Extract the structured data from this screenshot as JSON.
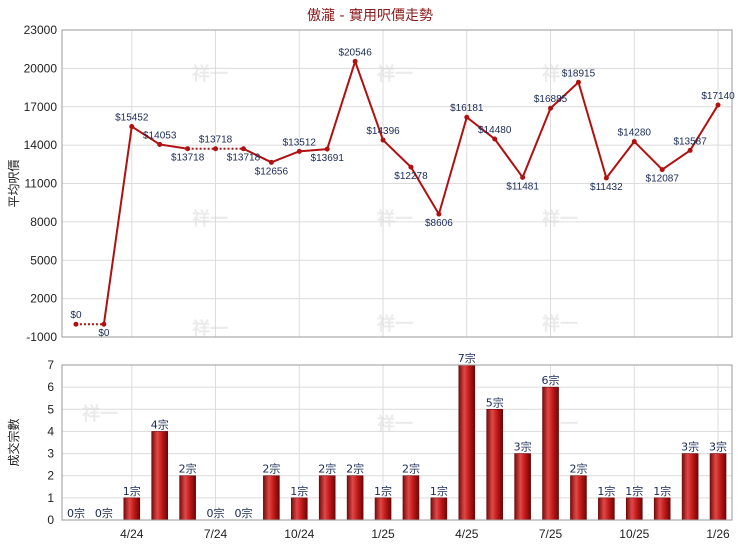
{
  "chart_data": [
    {
      "type": "line",
      "title": "傲瀧 - 實用呎價走勢",
      "ylabel": "平均呎價",
      "ylim": [
        -1000,
        23000
      ],
      "yticks": [
        -1000,
        2000,
        5000,
        8000,
        11000,
        14000,
        17000,
        20000,
        23000
      ],
      "xticks": [
        {
          "label": "4/24",
          "index": 2
        },
        {
          "label": "7/24",
          "index": 5
        },
        {
          "label": "10/24",
          "index": 8
        },
        {
          "label": "1/25",
          "index": 11
        },
        {
          "label": "4/25",
          "index": 14
        },
        {
          "label": "7/25",
          "index": 17
        },
        {
          "label": "10/25",
          "index": 20
        },
        {
          "label": "1/26",
          "index": 23
        }
      ],
      "line_color": "#b01010",
      "points": [
        {
          "value": 0,
          "label": "$0",
          "dashed_to_next": true
        },
        {
          "value": 0,
          "label": "$0"
        },
        {
          "value": 15452,
          "label": "$15452"
        },
        {
          "value": 14053,
          "label": "$14053"
        },
        {
          "value": 13718,
          "label": "$13718",
          "dashed_to_next": true
        },
        {
          "value": 13718,
          "label": "$13718",
          "dashed_to_next": true
        },
        {
          "value": 13718,
          "label": "$13718"
        },
        {
          "value": 12656,
          "label": "$12656"
        },
        {
          "value": 13512,
          "label": "$13512"
        },
        {
          "value": 13691,
          "label": "$13691"
        },
        {
          "value": 20546,
          "label": "$20546"
        },
        {
          "value": 14396,
          "label": "$14396"
        },
        {
          "value": 12278,
          "label": "$12278"
        },
        {
          "value": 8606,
          "label": "$8606"
        },
        {
          "value": 16181,
          "label": "$16181"
        },
        {
          "value": 14480,
          "label": "$14480"
        },
        {
          "value": 11481,
          "label": "$11481"
        },
        {
          "value": 16885,
          "label": "$16885"
        },
        {
          "value": 18915,
          "label": "$18915"
        },
        {
          "value": 11432,
          "label": "$11432"
        },
        {
          "value": 14280,
          "label": "$14280"
        },
        {
          "value": 12087,
          "label": "$12087"
        },
        {
          "value": 13587,
          "label": "$13587"
        },
        {
          "value": 17140,
          "label": "$17140"
        }
      ]
    },
    {
      "type": "bar",
      "ylabel": "成交宗數",
      "ylim": [
        0,
        7
      ],
      "yticks": [
        0,
        1,
        2,
        3,
        4,
        5,
        6,
        7
      ],
      "bar_color": "#b01010",
      "values": [
        0,
        0,
        1,
        4,
        2,
        0,
        0,
        2,
        1,
        2,
        2,
        1,
        2,
        1,
        7,
        5,
        3,
        6,
        2,
        1,
        1,
        1,
        3,
        3
      ],
      "labels": [
        "0宗",
        "0宗",
        "1宗",
        "4宗",
        "2宗",
        "0宗",
        "0宗",
        "2宗",
        "1宗",
        "2宗",
        "2宗",
        "1宗",
        "2宗",
        "1宗",
        "7宗",
        "5宗",
        "3宗",
        "6宗",
        "2宗",
        "1宗",
        "1宗",
        "1宗",
        "3宗",
        "3宗"
      ]
    }
  ],
  "watermark": "祥一"
}
